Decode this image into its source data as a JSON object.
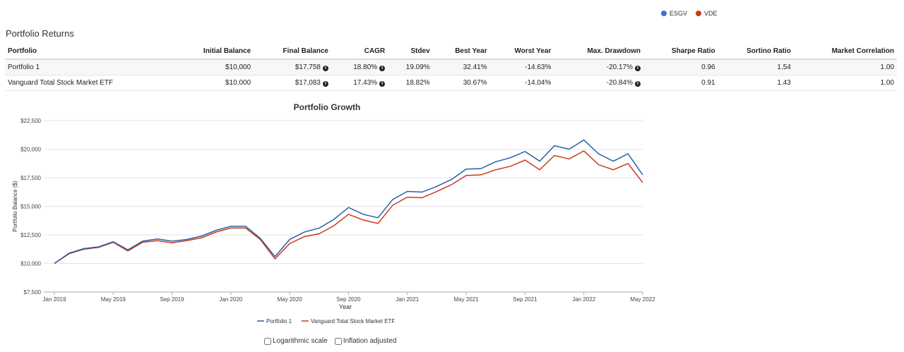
{
  "legend_top": [
    {
      "label": "ESGV",
      "color": "#3a72d6"
    },
    {
      "label": "VDE",
      "color": "#cc3a1b"
    }
  ],
  "section_title": "Portfolio Returns",
  "table": {
    "headers": [
      "Portfolio",
      "Initial Balance",
      "Final Balance",
      "CAGR",
      "Stdev",
      "Best Year",
      "Worst Year",
      "Max. Drawdown",
      "Sharpe Ratio",
      "Sortino Ratio",
      "Market Correlation"
    ],
    "rows": [
      [
        "Portfolio 1",
        "$10,000",
        "$17,758",
        "18.80%",
        "19.09%",
        "32.41%",
        "-14.63%",
        "-20.17%",
        "0.96",
        "1.54",
        "1.00"
      ],
      [
        "Vanguard Total Stock Market ETF",
        "$10,000",
        "$17,083",
        "17.43%",
        "18.82%",
        "30.67%",
        "-14.04%",
        "-20.84%",
        "0.91",
        "1.43",
        "1.00"
      ]
    ]
  },
  "chart_data": {
    "type": "line",
    "title": "Portfolio Growth",
    "xlabel": "Year",
    "ylabel": "Portfolio Balance ($)",
    "ylim": [
      7500,
      22500
    ],
    "y_ticks": [
      "$7,500",
      "$10,000",
      "$12,500",
      "$15,000",
      "$17,500",
      "$20,000",
      "$22,500"
    ],
    "x_ticks": [
      "Jan 2019",
      "May 2019",
      "Sep 2019",
      "Jan 2020",
      "May 2020",
      "Sep 2020",
      "Jan 2021",
      "May 2021",
      "Sep 2021",
      "Jan 2022",
      "May 2022"
    ],
    "grid": true,
    "legend_position": "bottom",
    "series": [
      {
        "name": "Portfolio 1",
        "color": "#2a5fa8",
        "values": [
          10000,
          10900,
          11300,
          11450,
          11900,
          11200,
          11950,
          12150,
          11950,
          12100,
          12400,
          12900,
          13250,
          13250,
          12200,
          10600,
          12100,
          12750,
          13100,
          13850,
          14900,
          14300,
          14000,
          15600,
          16300,
          16250,
          16750,
          17350,
          18250,
          18300,
          18900,
          19250,
          19800,
          18950,
          20300,
          20000,
          20800,
          19600,
          18950,
          19600,
          17758
        ]
      },
      {
        "name": "Vanguard Total Stock Market ETF",
        "color": "#c93a1a",
        "values": [
          10000,
          10850,
          11250,
          11400,
          11850,
          11100,
          11850,
          12000,
          11800,
          12000,
          12250,
          12750,
          13100,
          13100,
          12100,
          10400,
          11750,
          12350,
          12600,
          13300,
          14300,
          13800,
          13500,
          15100,
          15800,
          15750,
          16300,
          16900,
          17700,
          17750,
          18200,
          18500,
          19050,
          18200,
          19450,
          19150,
          19850,
          18650,
          18200,
          18750,
          17083
        ]
      }
    ]
  },
  "controls": {
    "log_scale_label": "Logarithmic scale",
    "inflation_label": "Inflation adjusted"
  }
}
